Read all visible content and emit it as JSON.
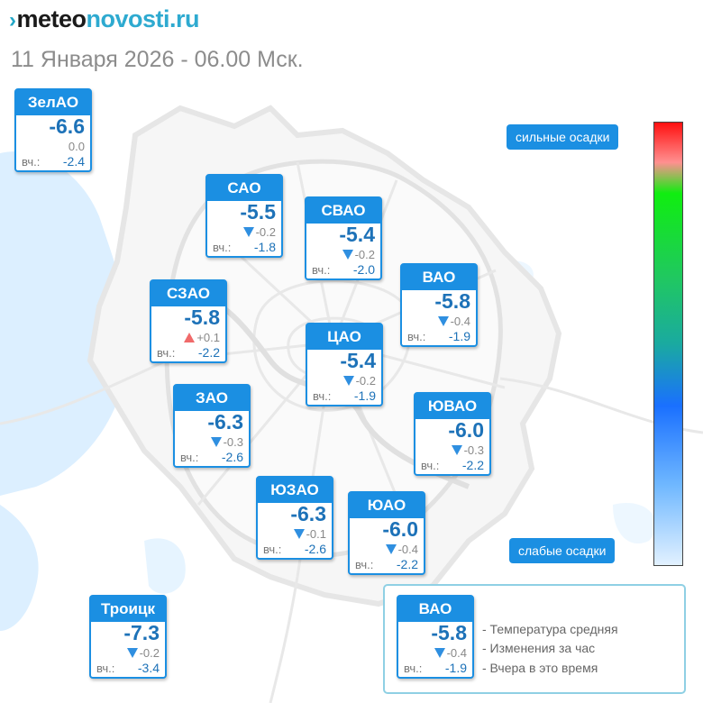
{
  "header": {
    "logo_mark": "›",
    "logo_part1": "meteo",
    "logo_part2": "novosti.ru",
    "subtitle": "11 Января 2026 - 06.00 Мск."
  },
  "yday_label": "вч.:",
  "districts": [
    {
      "id": "zelao",
      "name": "ЗелАО",
      "temp": "-6.6",
      "change": "0.0",
      "trend": "none",
      "yesterday": "-2.4"
    },
    {
      "id": "sao",
      "name": "САО",
      "temp": "-5.5",
      "change": "-0.2",
      "trend": "down",
      "yesterday": "-1.8"
    },
    {
      "id": "svao",
      "name": "СВАО",
      "temp": "-5.4",
      "change": "-0.2",
      "trend": "down",
      "yesterday": "-2.0"
    },
    {
      "id": "vao",
      "name": "ВАО",
      "temp": "-5.8",
      "change": "-0.4",
      "trend": "down",
      "yesterday": "-1.9"
    },
    {
      "id": "szao",
      "name": "СЗАО",
      "temp": "-5.8",
      "change": "+0.1",
      "trend": "up",
      "yesterday": "-2.2"
    },
    {
      "id": "cao",
      "name": "ЦАО",
      "temp": "-5.4",
      "change": "-0.2",
      "trend": "down",
      "yesterday": "-1.9"
    },
    {
      "id": "zao",
      "name": "ЗАО",
      "temp": "-6.3",
      "change": "-0.3",
      "trend": "down",
      "yesterday": "-2.6"
    },
    {
      "id": "yuvao",
      "name": "ЮВАО",
      "temp": "-6.0",
      "change": "-0.3",
      "trend": "down",
      "yesterday": "-2.2"
    },
    {
      "id": "yuzao",
      "name": "ЮЗАО",
      "temp": "-6.3",
      "change": "-0.1",
      "trend": "down",
      "yesterday": "-2.6"
    },
    {
      "id": "yuao",
      "name": "ЮАО",
      "temp": "-6.0",
      "change": "-0.4",
      "trend": "down",
      "yesterday": "-2.2"
    },
    {
      "id": "troitsk",
      "name": "Троицк",
      "temp": "-7.3",
      "change": "-0.2",
      "trend": "down",
      "yesterday": "-3.4"
    }
  ],
  "precip_scale": {
    "top_label": "сильные осадки",
    "bottom_label": "слабые осадки",
    "colors": [
      "#ff1010",
      "#ff9090",
      "#10ee10",
      "#20c860",
      "#1aaaa0",
      "#1a70ff",
      "#70b8ff",
      "#e2f1ff"
    ]
  },
  "legend": {
    "example": {
      "name": "ВАО",
      "temp": "-5.8",
      "change": "-0.4",
      "trend": "down",
      "yesterday": "-1.9"
    },
    "items": [
      "- Температура средняя",
      "- Изменения за час",
      "- Вчера в это время"
    ]
  },
  "colors": {
    "accent": "#1b8fe2",
    "temp_text": "#1d72b8",
    "trend_down": "#2f8fe0",
    "trend_up": "#f06a6a"
  }
}
